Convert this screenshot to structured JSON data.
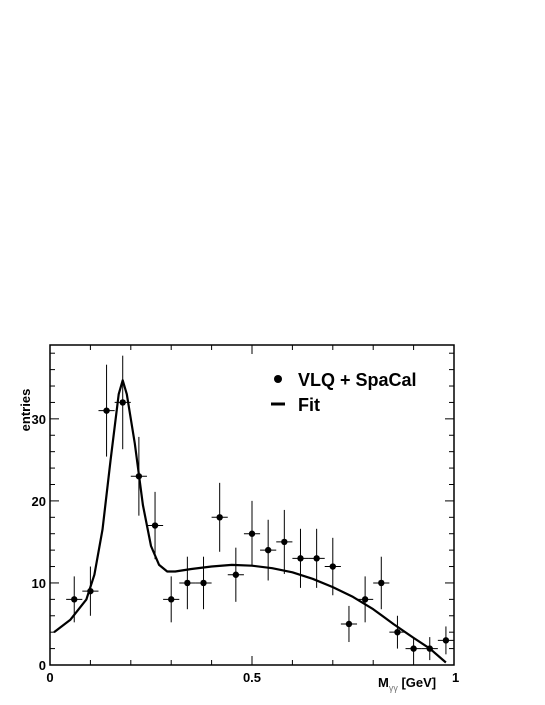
{
  "chart_data": {
    "type": "scatter",
    "title": "",
    "xlabel": "M",
    "xlabel_sub": "γγ",
    "xlabel_unit": " [GeV]",
    "ylabel": "entries",
    "xlim": [
      0,
      1
    ],
    "ylim": [
      0,
      39
    ],
    "x_ticks": [
      {
        "value": 0,
        "label": "0"
      },
      {
        "value": 0.5,
        "label": "0.5"
      },
      {
        "value": 1,
        "label": "1"
      }
    ],
    "y_ticks": [
      {
        "value": 0,
        "label": "0"
      },
      {
        "value": 10,
        "label": "10"
      },
      {
        "value": 20,
        "label": "20"
      },
      {
        "value": 30,
        "label": "30"
      }
    ],
    "grid": false,
    "legend": {
      "placement": "top-right",
      "entries": [
        {
          "label": "VLQ + SpaCal",
          "marker": "point"
        },
        {
          "label": "Fit",
          "marker": "line"
        }
      ]
    },
    "series": [
      {
        "kind": "points",
        "points": [
          {
            "x": 0.06,
            "y": 8,
            "xerr": 0.02,
            "yerr": 2.8
          },
          {
            "x": 0.1,
            "y": 9,
            "xerr": 0.02,
            "yerr": 3.0
          },
          {
            "x": 0.14,
            "y": 31,
            "xerr": 0.02,
            "yerr": 5.6
          },
          {
            "x": 0.18,
            "y": 32,
            "xerr": 0.02,
            "yerr": 5.7
          },
          {
            "x": 0.22,
            "y": 23,
            "xerr": 0.02,
            "yerr": 4.8
          },
          {
            "x": 0.26,
            "y": 17,
            "xerr": 0.02,
            "yerr": 4.1
          },
          {
            "x": 0.3,
            "y": 8,
            "xerr": 0.02,
            "yerr": 2.8
          },
          {
            "x": 0.34,
            "y": 10,
            "xerr": 0.02,
            "yerr": 3.2
          },
          {
            "x": 0.38,
            "y": 10,
            "xerr": 0.02,
            "yerr": 3.2
          },
          {
            "x": 0.42,
            "y": 18,
            "xerr": 0.02,
            "yerr": 4.2
          },
          {
            "x": 0.46,
            "y": 11,
            "xerr": 0.02,
            "yerr": 3.3
          },
          {
            "x": 0.5,
            "y": 16,
            "xerr": 0.02,
            "yerr": 4.0
          },
          {
            "x": 0.54,
            "y": 14,
            "xerr": 0.02,
            "yerr": 3.7
          },
          {
            "x": 0.58,
            "y": 15,
            "xerr": 0.02,
            "yerr": 3.9
          },
          {
            "x": 0.62,
            "y": 13,
            "xerr": 0.02,
            "yerr": 3.6
          },
          {
            "x": 0.66,
            "y": 13,
            "xerr": 0.02,
            "yerr": 3.6
          },
          {
            "x": 0.7,
            "y": 12,
            "xerr": 0.02,
            "yerr": 3.5
          },
          {
            "x": 0.74,
            "y": 5,
            "xerr": 0.02,
            "yerr": 2.2
          },
          {
            "x": 0.78,
            "y": 8,
            "xerr": 0.02,
            "yerr": 2.8
          },
          {
            "x": 0.82,
            "y": 10,
            "xerr": 0.02,
            "yerr": 3.2
          },
          {
            "x": 0.86,
            "y": 4,
            "xerr": 0.02,
            "yerr": 2.0
          },
          {
            "x": 0.9,
            "y": 2,
            "xerr": 0.02,
            "yerr": 1.4
          },
          {
            "x": 0.94,
            "y": 2,
            "xerr": 0.02,
            "yerr": 1.4
          },
          {
            "x": 0.98,
            "y": 3,
            "xerr": 0.02,
            "yerr": 1.7
          }
        ]
      },
      {
        "kind": "line",
        "points": [
          [
            0.01,
            4.0
          ],
          [
            0.05,
            5.5
          ],
          [
            0.09,
            8.0
          ],
          [
            0.11,
            11.0
          ],
          [
            0.13,
            16.5
          ],
          [
            0.15,
            25.0
          ],
          [
            0.17,
            33.0
          ],
          [
            0.18,
            34.7
          ],
          [
            0.19,
            33.0
          ],
          [
            0.21,
            27.0
          ],
          [
            0.23,
            19.5
          ],
          [
            0.25,
            14.5
          ],
          [
            0.27,
            12.2
          ],
          [
            0.29,
            11.4
          ],
          [
            0.31,
            11.4
          ],
          [
            0.35,
            11.7
          ],
          [
            0.4,
            12.0
          ],
          [
            0.45,
            12.2
          ],
          [
            0.5,
            12.1
          ],
          [
            0.55,
            11.8
          ],
          [
            0.6,
            11.3
          ],
          [
            0.65,
            10.5
          ],
          [
            0.7,
            9.5
          ],
          [
            0.75,
            8.3
          ],
          [
            0.8,
            6.8
          ],
          [
            0.85,
            5.0
          ],
          [
            0.9,
            3.3
          ],
          [
            0.94,
            2.0
          ],
          [
            0.98,
            0.3
          ]
        ]
      }
    ]
  }
}
